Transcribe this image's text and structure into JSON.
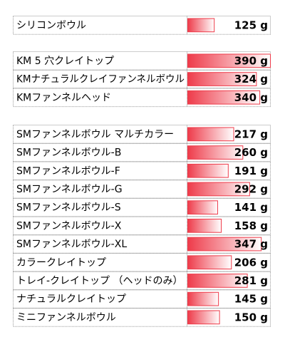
{
  "chart_data": {
    "type": "bar",
    "unit": "g",
    "xlim": [
      0,
      390
    ],
    "groups": [
      {
        "rows": [
          {
            "label": "シリコンボウル",
            "value": 125,
            "value_text": "125 g"
          }
        ]
      },
      {
        "rows": [
          {
            "label": "KM 5 穴クレイトップ",
            "value": 390,
            "value_text": "390 g"
          },
          {
            "label": "KMナチュラルクレイファンネルボウル",
            "value": 324,
            "value_text": "324 g"
          },
          {
            "label": "KMファンネルヘッド",
            "value": 340,
            "value_text": "340 g"
          }
        ]
      },
      {
        "rows": [
          {
            "label": "SMファンネルボウル マルチカラー",
            "value": 217,
            "value_text": "217 g"
          },
          {
            "label": "SMファンネルボウル-B",
            "value": 260,
            "value_text": "260 g"
          },
          {
            "label": "SMファンネルボウル-F",
            "value": 191,
            "value_text": "191 g"
          },
          {
            "label": "SMファンネルボウル-G",
            "value": 292,
            "value_text": "292 g"
          },
          {
            "label": "SMファンネルボウル-S",
            "value": 141,
            "value_text": "141 g"
          },
          {
            "label": "SMファンネルボウル-X",
            "value": 158,
            "value_text": "158 g"
          },
          {
            "label": "SMファンネルボウル-XL",
            "value": 347,
            "value_text": "347 g"
          },
          {
            "label": "カラークレイトップ",
            "value": 206,
            "value_text": "206 g"
          },
          {
            "label": "トレイ-クレイトップ （ヘッドのみ）",
            "value": 281,
            "value_text": "281 g"
          },
          {
            "label": "ナチュラルクレイトップ",
            "value": 145,
            "value_text": "145 g"
          },
          {
            "label": "ミニファンネルボウル",
            "value": 150,
            "value_text": "150 g"
          }
        ]
      }
    ],
    "bar_color": "#ee3b4a"
  }
}
